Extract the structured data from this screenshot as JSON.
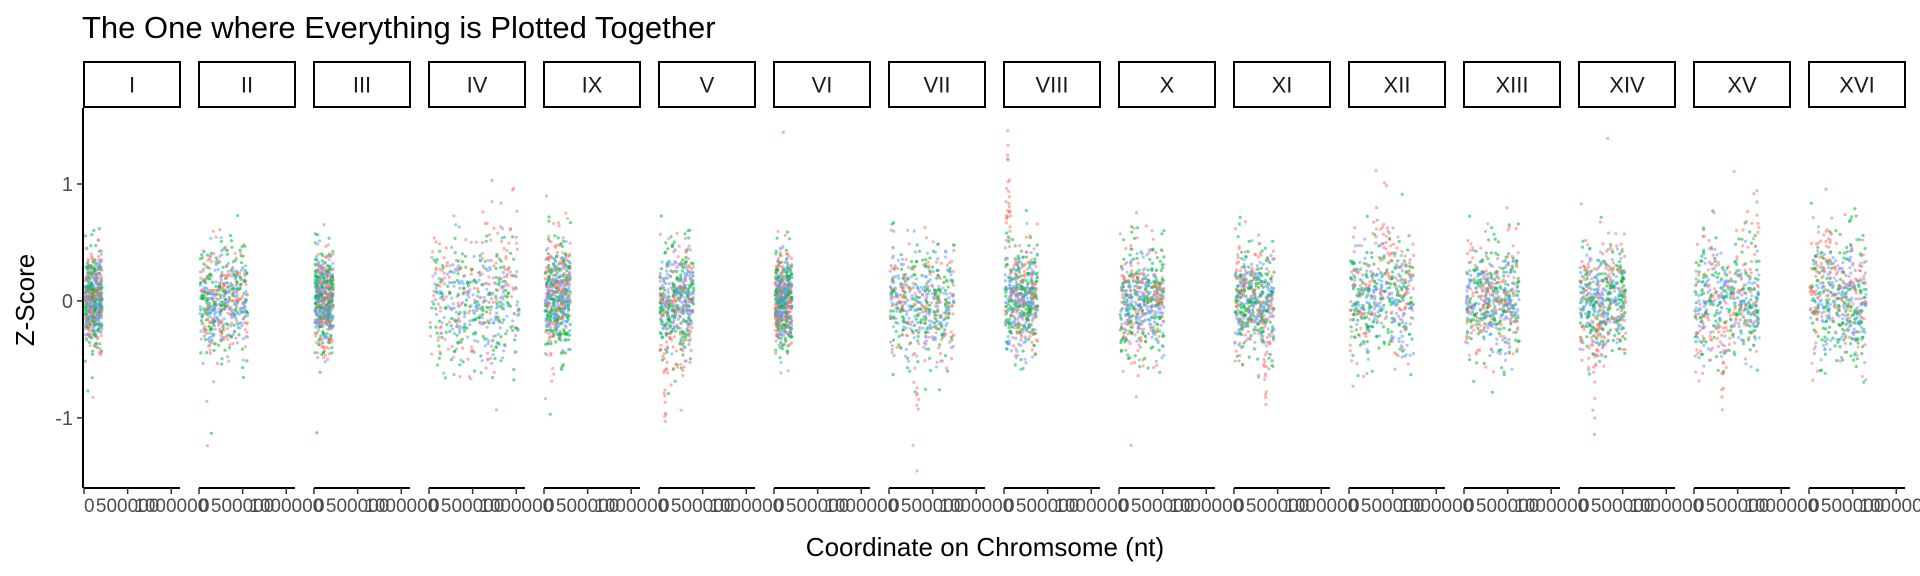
{
  "chart_data": {
    "type": "scatter",
    "title": "The One where Everything is Plotted Together",
    "xlabel": "Coordinate on Chromsome (nt)",
    "ylabel": "Z-Score",
    "ylim": [
      -1.6,
      1.65
    ],
    "yticks": [
      1,
      0,
      -1
    ],
    "ytick_labels": [
      "1",
      "0",
      "-1"
    ],
    "xlim": [
      0,
      1100000
    ],
    "xticks": [
      0,
      500000,
      1000000
    ],
    "xtick_labels": [
      "0",
      "500000",
      "1000000"
    ],
    "grid": false,
    "legend": "none",
    "facet_by": "chromosome",
    "series_colors": [
      "#F8766D",
      "#00BA38",
      "#619CFF"
    ],
    "panels": [
      {
        "label": "I",
        "extent": [
          0,
          230000
        ],
        "spread": 0.22,
        "features": []
      },
      {
        "label": "II",
        "extent": [
          0,
          810000
        ],
        "spread": 0.25,
        "features": []
      },
      {
        "label": "III",
        "extent": [
          0,
          320000
        ],
        "spread": 0.22,
        "features": []
      },
      {
        "label": "IV",
        "extent": [
          0,
          1530000
        ],
        "spread": 0.28,
        "features": [
          {
            "type": "ramp",
            "from": 0.45,
            "to": 1.0,
            "level": 0.3
          }
        ]
      },
      {
        "label": "IX",
        "extent": [
          0,
          440000
        ],
        "spread": 0.25,
        "features": [
          {
            "type": "ramp",
            "from": 0.0,
            "to": 1.0,
            "level": 0.2
          }
        ]
      },
      {
        "label": "V",
        "extent": [
          0,
          580000
        ],
        "spread": 0.25,
        "features": [
          {
            "type": "peak",
            "at": 0.15,
            "width": 0.1,
            "level": -0.85
          }
        ]
      },
      {
        "label": "VI",
        "extent": [
          0,
          270000
        ],
        "spread": 0.22,
        "features": []
      },
      {
        "label": "VII",
        "extent": [
          0,
          1090000
        ],
        "spread": 0.28,
        "features": [
          {
            "type": "peak",
            "at": 0.42,
            "width": 0.08,
            "level": -0.95
          }
        ]
      },
      {
        "label": "VIII",
        "extent": [
          0,
          560000
        ],
        "spread": 0.25,
        "features": [
          {
            "type": "peak",
            "at": 0.1,
            "width": 0.12,
            "level": 1.5
          }
        ]
      },
      {
        "label": "X",
        "extent": [
          0,
          750000
        ],
        "spread": 0.25,
        "features": []
      },
      {
        "label": "XI",
        "extent": [
          0,
          670000
        ],
        "spread": 0.25,
        "features": [
          {
            "type": "peak",
            "at": 0.78,
            "width": 0.1,
            "level": -0.9
          }
        ]
      },
      {
        "label": "XII",
        "extent": [
          0,
          1080000
        ],
        "spread": 0.28,
        "features": [
          {
            "type": "peak",
            "at": 0.5,
            "width": 0.3,
            "level": 0.45
          }
        ]
      },
      {
        "label": "XIII",
        "extent": [
          0,
          920000
        ],
        "spread": 0.25,
        "features": []
      },
      {
        "label": "XIV",
        "extent": [
          0,
          780000
        ],
        "spread": 0.25,
        "features": [
          {
            "type": "peak",
            "at": 0.32,
            "width": 0.1,
            "level": -0.7
          }
        ]
      },
      {
        "label": "XV",
        "extent": [
          0,
          1090000
        ],
        "spread": 0.28,
        "features": [
          {
            "type": "peak",
            "at": 0.42,
            "width": 0.1,
            "level": -0.65
          },
          {
            "type": "ramp",
            "from": 0.7,
            "to": 1.0,
            "level": 0.3
          }
        ]
      },
      {
        "label": "XVI",
        "extent": [
          0,
          950000
        ],
        "spread": 0.28,
        "features": [
          {
            "type": "peak",
            "at": 0.35,
            "width": 0.3,
            "level": 0.45
          }
        ]
      }
    ]
  }
}
